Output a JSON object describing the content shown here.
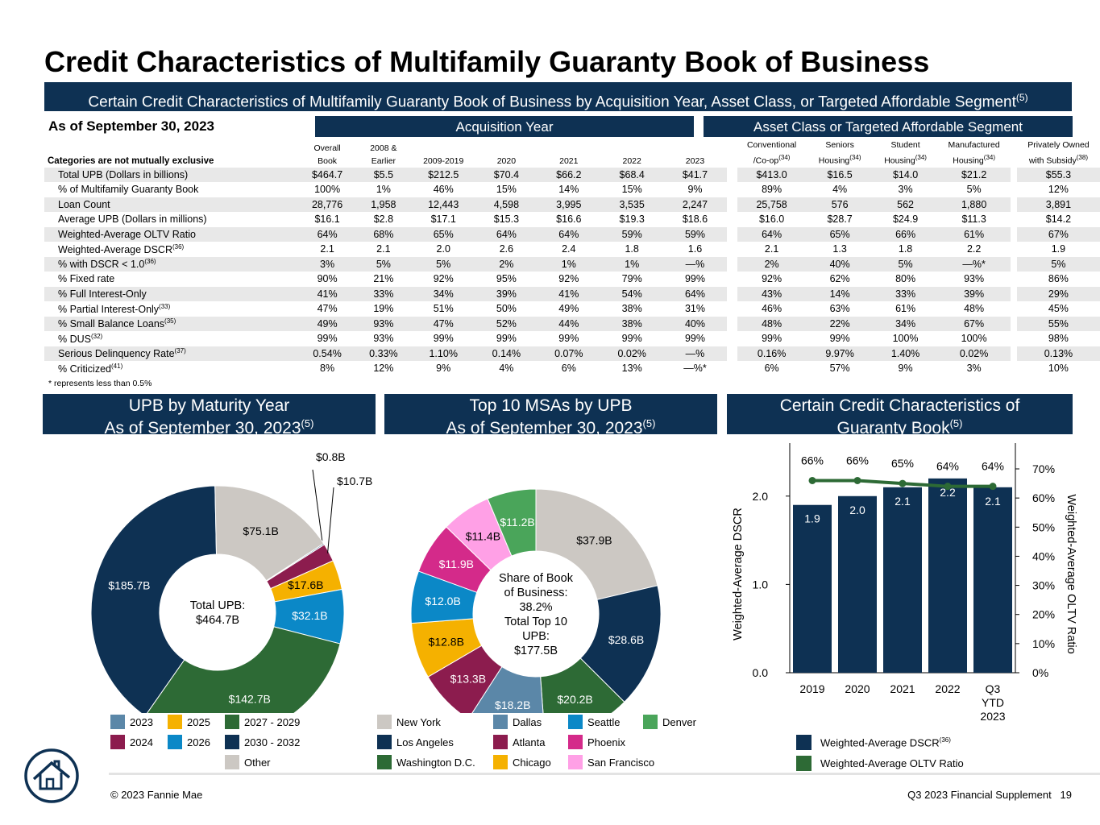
{
  "title": "Credit Characteristics of Multifamily Guaranty Book of Business",
  "banner": {
    "text": "Certain Credit Characteristics of Multifamily Guaranty Book of Business by Acquisition Year, Asset Class, or Targeted Affordable Segment",
    "sup": "(5)"
  },
  "as_of": "As of September 30, 2023",
  "group_headers": {
    "acquisition": "Acquisition Year",
    "asset": "Asset Class or Targeted Affordable Segment"
  },
  "table": {
    "category_note": "Categories are not mutually exclusive",
    "columns": [
      {
        "l1": "Overall",
        "l2": "Book",
        "sup": ""
      },
      {
        "l1": "2008 &",
        "l2": "Earlier",
        "sup": ""
      },
      {
        "l1": "",
        "l2": "2009-2019",
        "sup": ""
      },
      {
        "l1": "",
        "l2": "2020",
        "sup": ""
      },
      {
        "l1": "",
        "l2": "2021",
        "sup": ""
      },
      {
        "l1": "",
        "l2": "2022",
        "sup": ""
      },
      {
        "l1": "",
        "l2": "2023",
        "sup": ""
      },
      {
        "l1": "Conventional",
        "l2": "/Co-op",
        "sup": "(34)"
      },
      {
        "l1": "Seniors",
        "l2": "Housing",
        "sup": "(34)"
      },
      {
        "l1": "Student",
        "l2": "Housing",
        "sup": "(34)"
      },
      {
        "l1": "Manufactured",
        "l2": "Housing",
        "sup": "(34)"
      },
      {
        "l1": "Privately Owned",
        "l2": "with Subsidy",
        "sup": "(38)"
      }
    ],
    "rows": [
      {
        "label": "Total UPB (Dollars in billions)",
        "sup": "",
        "values": [
          "$464.7",
          "$5.5",
          "$212.5",
          "$70.4",
          "$66.2",
          "$68.4",
          "$41.7",
          "$413.0",
          "$16.5",
          "$14.0",
          "$21.2",
          "$55.3"
        ]
      },
      {
        "label": "% of Multifamily Guaranty Book",
        "sup": "",
        "values": [
          "100%",
          "1%",
          "46%",
          "15%",
          "14%",
          "15%",
          "9%",
          "89%",
          "4%",
          "3%",
          "5%",
          "12%"
        ]
      },
      {
        "label": "Loan Count",
        "sup": "",
        "values": [
          "28,776",
          "1,958",
          "12,443",
          "4,598",
          "3,995",
          "3,535",
          "2,247",
          "25,758",
          "576",
          "562",
          "1,880",
          "3,891"
        ]
      },
      {
        "label": "Average UPB (Dollars in millions)",
        "sup": "",
        "values": [
          "$16.1",
          "$2.8",
          "$17.1",
          "$15.3",
          "$16.6",
          "$19.3",
          "$18.6",
          "$16.0",
          "$28.7",
          "$24.9",
          "$11.3",
          "$14.2"
        ]
      },
      {
        "label": "Weighted-Average OLTV Ratio",
        "sup": "",
        "values": [
          "64%",
          "68%",
          "65%",
          "64%",
          "64%",
          "59%",
          "59%",
          "64%",
          "65%",
          "66%",
          "61%",
          "67%"
        ]
      },
      {
        "label": "Weighted-Average DSCR",
        "sup": "(36)",
        "values": [
          "2.1",
          "2.1",
          "2.0",
          "2.6",
          "2.4",
          "1.8",
          "1.6",
          "2.1",
          "1.3",
          "1.8",
          "2.2",
          "1.9"
        ]
      },
      {
        "label": "% with DSCR < 1.0",
        "sup": "(36)",
        "values": [
          "3%",
          "5%",
          "5%",
          "2%",
          "1%",
          "1%",
          "—%",
          "2%",
          "40%",
          "5%",
          "—%*",
          "5%"
        ]
      },
      {
        "label": "% Fixed rate",
        "sup": "",
        "values": [
          "90%",
          "21%",
          "92%",
          "95%",
          "92%",
          "79%",
          "99%",
          "92%",
          "62%",
          "80%",
          "93%",
          "86%"
        ]
      },
      {
        "label": "% Full Interest-Only",
        "sup": "",
        "values": [
          "41%",
          "33%",
          "34%",
          "39%",
          "41%",
          "54%",
          "64%",
          "43%",
          "14%",
          "33%",
          "39%",
          "29%"
        ]
      },
      {
        "label": "% Partial Interest-Only",
        "sup": "(33)",
        "values": [
          "47%",
          "19%",
          "51%",
          "50%",
          "49%",
          "38%",
          "31%",
          "46%",
          "63%",
          "61%",
          "48%",
          "45%"
        ]
      },
      {
        "label": "% Small Balance Loans",
        "sup": "(35)",
        "values": [
          "49%",
          "93%",
          "47%",
          "52%",
          "44%",
          "38%",
          "40%",
          "48%",
          "22%",
          "34%",
          "67%",
          "55%"
        ]
      },
      {
        "label": "% DUS",
        "sup": "(32)",
        "values": [
          "99%",
          "93%",
          "99%",
          "99%",
          "99%",
          "99%",
          "99%",
          "99%",
          "99%",
          "100%",
          "100%",
          "98%"
        ]
      },
      {
        "label": "Serious Delinquency Rate",
        "sup": "(37)",
        "values": [
          "0.54%",
          "0.33%",
          "1.10%",
          "0.14%",
          "0.07%",
          "0.02%",
          "—%",
          "0.16%",
          "9.97%",
          "1.40%",
          "0.02%",
          "0.13%"
        ]
      },
      {
        "label": "% Criticized",
        "sup": "(41)",
        "values": [
          "8%",
          "12%",
          "9%",
          "4%",
          "6%",
          "13%",
          "—%*",
          "6%",
          "57%",
          "9%",
          "3%",
          "10%"
        ]
      }
    ]
  },
  "footnote": "*  represents less than 0.5%",
  "panels": {
    "maturity": {
      "l1": "UPB by Maturity Year",
      "l2": "As of September 30, 2023",
      "sup": "(5)"
    },
    "msa": {
      "l1": "Top 10 MSAs by UPB",
      "l2": "As of September 30, 2023",
      "sup": "(5)"
    },
    "credit": {
      "l1": "Certain Credit Characteristics of",
      "l2": "Guaranty Book",
      "sup": "(5)"
    }
  },
  "chart_data": [
    {
      "type": "pie",
      "title": "UPB by Maturity Year",
      "center_label": [
        "Total UPB:",
        "$464.7B"
      ],
      "categories": [
        "2023",
        "2024",
        "2025",
        "2026",
        "2027 - 2029",
        "2030 - 2032",
        "Other"
      ],
      "values": [
        0.8,
        10.7,
        17.6,
        32.1,
        142.7,
        185.7,
        75.1
      ],
      "labels": [
        "$0.8B",
        "$10.7B",
        "$17.6B",
        "$32.1B",
        "$142.7B",
        "$185.7B",
        "$75.1B"
      ],
      "colors": [
        "#5b87a8",
        "#8c1c4e",
        "#f5b100",
        "#0b88c7",
        "#2d6a35",
        "#0e3153",
        "#ccc8c3"
      ],
      "legend_order": [
        "2023",
        "2025",
        "2027 - 2029",
        "2024",
        "2026",
        "2030 - 2032",
        "Other"
      ]
    },
    {
      "type": "pie",
      "title": "Top 10 MSAs by UPB",
      "center_label": [
        "Share of Book",
        "of Business:",
        "38.2%",
        "Total Top 10",
        "UPB:",
        "$177.5B"
      ],
      "categories": [
        "New York",
        "Los Angeles",
        "Washington D.C.",
        "Dallas",
        "Atlanta",
        "Chicago",
        "Seattle",
        "Phoenix",
        "San Francisco",
        "Denver"
      ],
      "values": [
        37.9,
        28.6,
        20.2,
        18.2,
        13.3,
        12.8,
        12.0,
        11.9,
        11.4,
        11.2
      ],
      "labels": [
        "$37.9B",
        "$28.6B",
        "$20.2B",
        "$18.2B",
        "$13.3B",
        "$12.8B",
        "$12.0B",
        "$11.9B",
        "$11.4B",
        "$11.2B"
      ],
      "colors": [
        "#ccc8c3",
        "#0e3153",
        "#2d6a35",
        "#5b87a8",
        "#8c1c4e",
        "#f5b100",
        "#0b88c7",
        "#d42a8a",
        "#ffa0e6",
        "#4aa55a"
      ],
      "legend_order": [
        "New York",
        "Dallas",
        "Seattle",
        "Denver",
        "Los Angeles",
        "Atlanta",
        "Phoenix",
        "Washington D.C.",
        "Chicago",
        "San Francisco"
      ]
    },
    {
      "type": "bar",
      "categories": [
        "2019",
        "2020",
        "2021",
        "2022",
        "Q3 YTD 2023"
      ],
      "category_lines": [
        [
          "2019"
        ],
        [
          "2020"
        ],
        [
          "2021"
        ],
        [
          "2022"
        ],
        [
          "Q3",
          "YTD",
          "2023"
        ]
      ],
      "series": [
        {
          "name": "Weighted-Average DSCR",
          "sup": "(36)",
          "type": "bar",
          "axis": "left",
          "values": [
            1.9,
            2.0,
            2.1,
            2.2,
            2.1
          ],
          "labels": [
            "1.9",
            "2.0",
            "2.1",
            "2.2",
            "2.1"
          ],
          "color": "#0e3153"
        },
        {
          "name": "Weighted-Average OLTV Ratio",
          "type": "line",
          "axis": "right",
          "values": [
            66,
            66,
            65,
            64,
            64
          ],
          "labels": [
            "66%",
            "66%",
            "65%",
            "64%",
            "64%"
          ],
          "color": "#2d6a35"
        }
      ],
      "ylabel": "Weighted-Average DSCR",
      "y2label": "Weighted-Average OLTV Ratio",
      "ylim": [
        0,
        2.6
      ],
      "yticks": [
        "0.0",
        "1.0",
        "2.0"
      ],
      "y2lim": [
        0,
        70
      ],
      "y2ticks": [
        "0%",
        "10%",
        "20%",
        "30%",
        "40%",
        "50%",
        "60%",
        "70%"
      ]
    }
  ],
  "footer": {
    "copyright": "© 2023 Fannie Mae",
    "doc": "Q3 2023 Financial Supplement",
    "page": "19"
  }
}
